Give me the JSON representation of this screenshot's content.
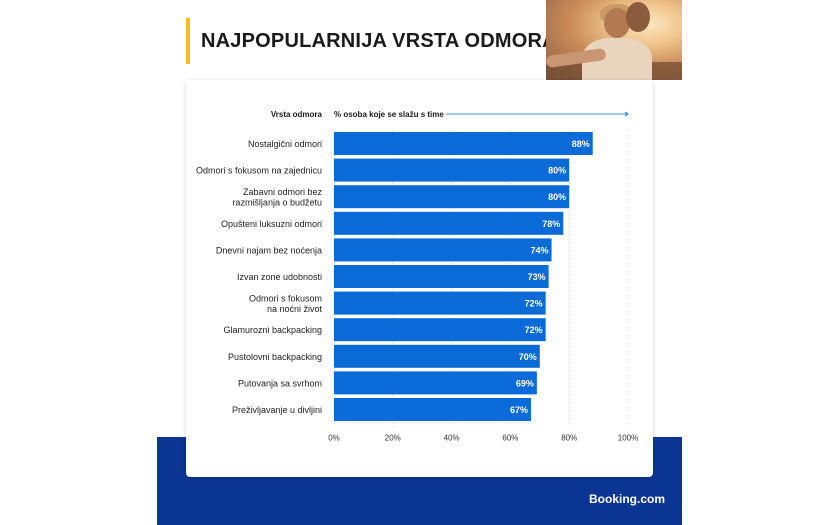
{
  "page": {
    "title": "NAJPOPULARNIJA VRSTA ODMORA",
    "logo": "Booking.com",
    "colors": {
      "bar": "#0a6ad8",
      "band": "#0a3593",
      "accent": "#f5b921"
    }
  },
  "chart_data": {
    "type": "bar",
    "orientation": "horizontal",
    "category_header": "Vrsta odmora",
    "value_header": "% osoba koje se slažu s time",
    "categories": [
      [
        "Nostalgični odmori"
      ],
      [
        "Odmori s fokusom na zajednicu"
      ],
      [
        "Zabavni odmori bez",
        "razmišljanja o budžetu"
      ],
      [
        "Opušteni luksuzni odmori"
      ],
      [
        "Dnevni najam bez noćenja"
      ],
      [
        "Izvan zone udobnosti"
      ],
      [
        "Odmori s fokusom",
        "na noćni život"
      ],
      [
        "Glamurozni backpacking"
      ],
      [
        "Pustolovni backpacking"
      ],
      [
        "Putovanja sa svrhom"
      ],
      [
        "Preživljavanje u divljini"
      ]
    ],
    "values": [
      88,
      80,
      80,
      78,
      74,
      73,
      72,
      72,
      70,
      69,
      67
    ],
    "value_labels": [
      "88%",
      "80%",
      "80%",
      "78%",
      "74%",
      "73%",
      "72%",
      "72%",
      "70%",
      "69%",
      "67%"
    ],
    "xlim": [
      0,
      100
    ],
    "xticks": [
      0,
      20,
      40,
      60,
      80,
      100
    ],
    "xtick_labels": [
      "0%",
      "20%",
      "40%",
      "60%",
      "80%",
      "100%"
    ],
    "grid": true
  }
}
